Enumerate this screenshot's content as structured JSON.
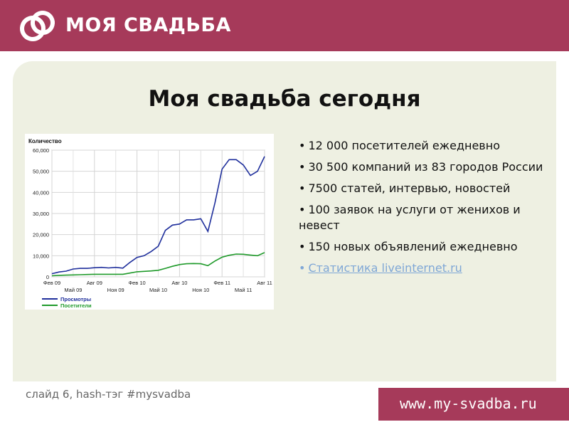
{
  "header": {
    "brand": "МОЯ СВАДЬБА"
  },
  "slide": {
    "title": "Моя свадьба сегодня",
    "bullets": [
      "12 000 посетителей ежедневно",
      "30 500 компаний из 83 городов России",
      "7500 статей, интервью, новостей",
      "100 заявок на услуги от женихов и невест",
      "150 новых объявлений ежедневно"
    ],
    "link": "Статистика liveinternet.ru"
  },
  "footer": {
    "caption": "слайд 6, hash-тэг #mysvadba",
    "url": "www.my-svadba.ru"
  },
  "colors": {
    "brand": "#a63a5a",
    "panel": "#eef0e2",
    "views": "#1f2f9c",
    "visitors": "#1f9a2a",
    "link": "#7fa7d6"
  },
  "chart_data": {
    "type": "line",
    "ylabel": "Количество",
    "ylim": [
      0,
      60000
    ],
    "yticks": [
      "60,000",
      "50,000",
      "40,000",
      "30,000",
      "20,000",
      "10,000",
      "0"
    ],
    "yticks_values": [
      60000,
      50000,
      40000,
      30000,
      20000,
      10000,
      0
    ],
    "xticks_top": [
      "Фев 09",
      "Авг 09",
      "Фев 10",
      "Авг 10",
      "Фев 11",
      "Авг 11"
    ],
    "xticks_bottom": [
      "Май 09",
      "Ноя 09",
      "Май 10",
      "Ноя 10",
      "Май 11"
    ],
    "series": [
      {
        "name": "Просмотры",
        "color": "#1f2f9c",
        "values": [
          1500,
          2300,
          2700,
          3700,
          4000,
          4000,
          4300,
          4500,
          4200,
          4500,
          4100,
          6800,
          9200,
          10000,
          12000,
          14500,
          22000,
          24500,
          25000,
          27000,
          27000,
          27500,
          21500,
          35000,
          51000,
          55500,
          55500,
          53000,
          48000,
          50000,
          57000
        ]
      },
      {
        "name": "Посетители",
        "color": "#1f9a2a",
        "values": [
          500,
          700,
          800,
          900,
          1000,
          1100,
          1200,
          1200,
          1200,
          1200,
          1200,
          1800,
          2400,
          2600,
          2800,
          3100,
          4000,
          5000,
          5800,
          6200,
          6300,
          6200,
          5300,
          7500,
          9300,
          10200,
          10800,
          10700,
          10300,
          10000,
          11500
        ]
      }
    ]
  }
}
